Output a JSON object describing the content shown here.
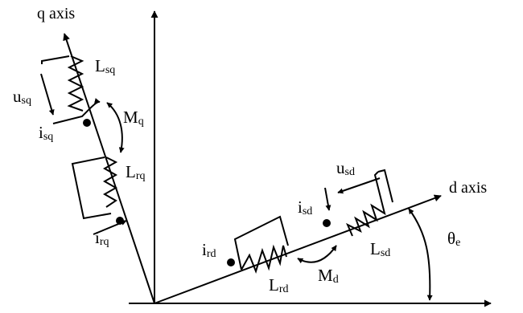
{
  "axes": {
    "q_axis": "q axis",
    "d_axis": "d axis"
  },
  "symbols": {
    "u_sq": {
      "main": "u",
      "sub": "sq"
    },
    "i_sq": {
      "main": "i",
      "sub": "sq"
    },
    "L_sq": {
      "main": "L",
      "sub": "sq"
    },
    "M_q": {
      "main": "M",
      "sub": "q"
    },
    "L_rq": {
      "main": "L",
      "sub": "rq"
    },
    "i_rq": {
      "main": "i",
      "sub": "rq"
    },
    "u_sd": {
      "main": "u",
      "sub": "sd"
    },
    "i_sd": {
      "main": "i",
      "sub": "sd"
    },
    "L_sd": {
      "main": "L",
      "sub": "sd"
    },
    "M_d": {
      "main": "M",
      "sub": "d"
    },
    "L_rd": {
      "main": "L",
      "sub": "rd"
    },
    "i_rd": {
      "main": "i",
      "sub": "rd"
    },
    "theta_e": {
      "main": "θ",
      "sub": "e"
    }
  },
  "colors": {
    "stroke": "#000000",
    "background": "#ffffff"
  }
}
